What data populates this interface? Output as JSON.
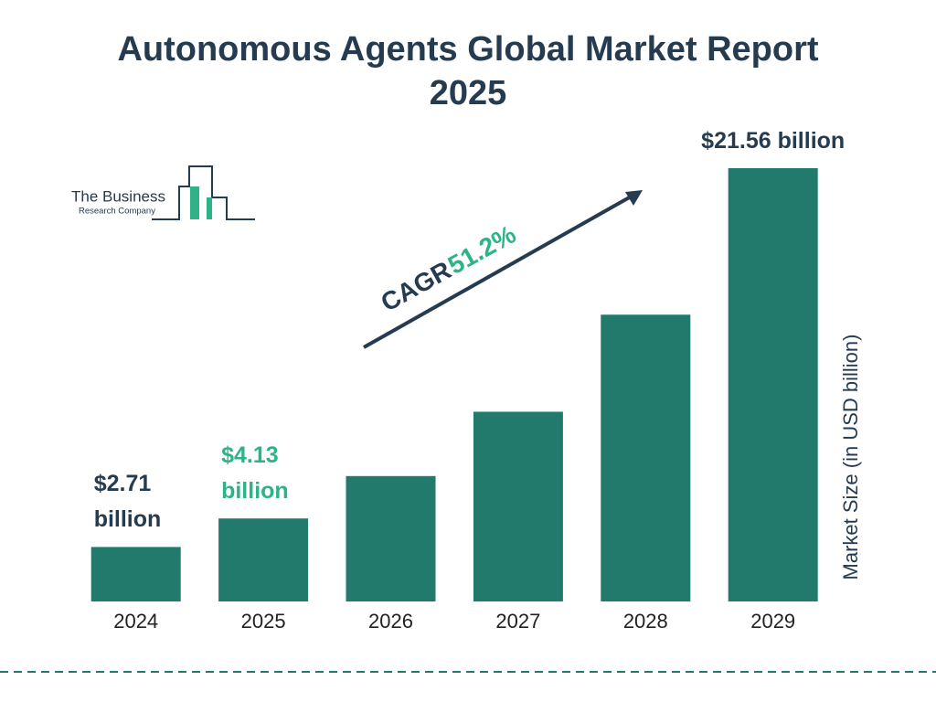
{
  "chart_data": {
    "type": "bar",
    "title": "Autonomous Agents Global Market Report 2025",
    "categories": [
      "2024",
      "2025",
      "2026",
      "2027",
      "2028",
      "2029"
    ],
    "values": [
      2.71,
      4.13,
      6.24,
      9.44,
      14.27,
      21.56
    ],
    "value_labels": [
      "$2.71 billion",
      "$4.13 billion",
      null,
      null,
      null,
      "$21.56 billion"
    ],
    "color": "#217a6b",
    "y_axis_label": "Market Size (in USD billion)",
    "cagr_label": "CAGR",
    "cagr": "51.2%"
  },
  "logo": {
    "line1": "The Business",
    "line2": "Research Company"
  }
}
